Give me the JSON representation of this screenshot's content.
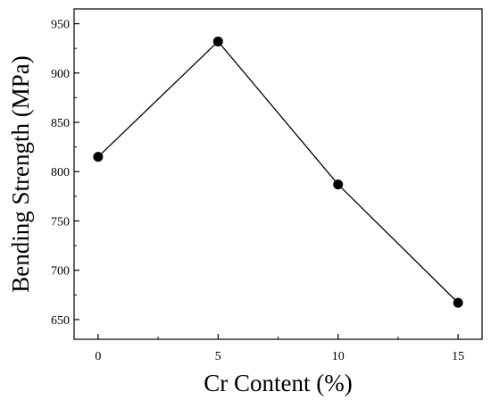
{
  "chart_data": {
    "type": "line",
    "title": "",
    "xlabel": "Cr Content (%)",
    "ylabel": "Bending Strength (MPa)",
    "x": [
      0,
      5,
      10,
      15
    ],
    "series": [
      {
        "values": [
          815,
          932,
          787,
          667
        ]
      }
    ],
    "xlim": [
      -1,
      16
    ],
    "ylim": [
      630,
      965
    ],
    "xticks": [
      0,
      5,
      10,
      15
    ],
    "xtick_labels": [
      "0",
      "5",
      "10",
      "15"
    ],
    "yticks": [
      650,
      700,
      750,
      800,
      850,
      900,
      950
    ],
    "ytick_labels": [
      "650",
      "700",
      "750",
      "800",
      "850",
      "900",
      "950"
    ],
    "grid": false,
    "legend": "none",
    "colors": {
      "line": "#000000",
      "marker": "#000000",
      "axes": "#000000"
    }
  }
}
